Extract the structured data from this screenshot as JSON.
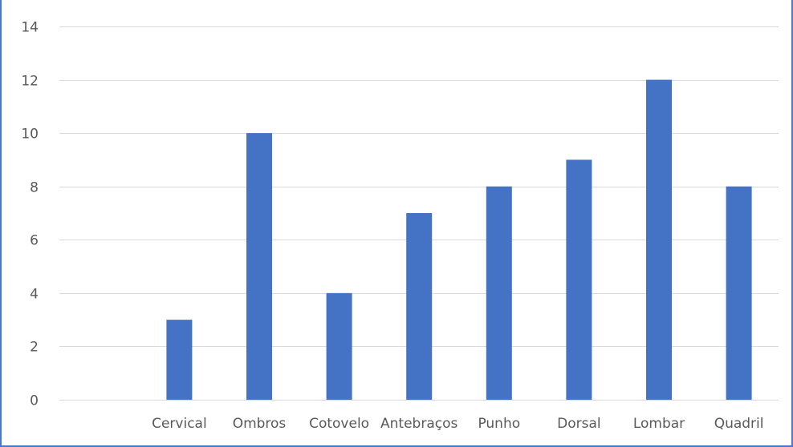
{
  "chart_data": {
    "type": "bar",
    "title": "",
    "xlabel": "",
    "ylabel": "",
    "categories": [
      "Cervical",
      "Ombros",
      "Cotovelo",
      "Antebraços",
      "Punho",
      "Dorsal",
      "Lombar",
      "Quadril"
    ],
    "series": [
      {
        "values": [
          3,
          10,
          4,
          7,
          8,
          9,
          12,
          8
        ],
        "color": "#4472c4"
      }
    ],
    "ylim": [
      0,
      14
    ],
    "yticks": [
      0,
      2,
      4,
      6,
      8,
      10,
      12,
      14
    ],
    "grid": true,
    "legend": "none",
    "colors": {
      "bar": "#4472c4",
      "grid": "#d9d9d9",
      "border": "#4a78c2",
      "text": "#595959"
    }
  }
}
